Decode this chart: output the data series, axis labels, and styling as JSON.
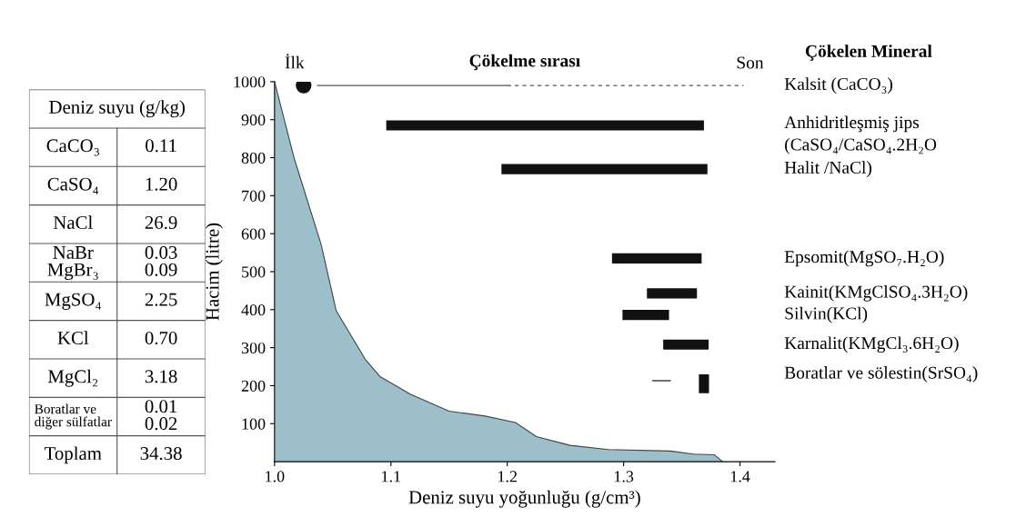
{
  "chart_data": [
    {
      "type": "other",
      "title": "Deniz suyu (g/kg)",
      "annotations": [
        "CaCO₃",
        "0.11",
        "CaSO₄",
        "1.20",
        "NaCl",
        "26.9",
        "NaBr\nMgBr₃",
        "0.03\n0.09",
        "MgSO₄",
        "2.25",
        "KCl",
        "0.70",
        "MgCl₂",
        "3.18",
        "Boratlar ve\ndiğer sülfatlar",
        "0.01\n0.02",
        "Toplam",
        "34.38"
      ]
    },
    {
      "type": "area",
      "title": "Çökelme sırası",
      "xlabel": "Deniz suyu yoğunluğu (g/cm³)",
      "ylabel": "Hacim (litre)",
      "legend_title": "Çökelen Mineral",
      "annotations": [
        "İlk",
        "Son"
      ],
      "xlim": [
        1.0,
        1.43
      ],
      "xticks": [
        {
          "value": 1.0,
          "label": "1.0"
        },
        1.1,
        1.2,
        1.3,
        1.4
      ],
      "ylim": [
        0,
        1000
      ],
      "yticks": [
        100,
        200,
        300,
        400,
        500,
        600,
        700,
        800,
        900,
        1000
      ],
      "grid": false,
      "legend": false,
      "series": [
        {
          "type": "area",
          "color": "#9dbfc9",
          "x": [
            1.0,
            1.017,
            1.04,
            1.053,
            1.078,
            1.091,
            1.117,
            1.15,
            1.181,
            1.207,
            1.225,
            1.254,
            1.287,
            1.34,
            1.36,
            1.378,
            1.385
          ],
          "values": [
            1000,
            797,
            572,
            397,
            269,
            223,
            177,
            133,
            120,
            103,
            66,
            43,
            32,
            28,
            20,
            18,
            0
          ]
        },
        {
          "type": "scatter",
          "name": "Kalsit (CaCO₃)",
          "color": "#111111",
          "marker": "circle",
          "x": [
            1.025
          ],
          "values": [
            990
          ]
        },
        {
          "type": "step",
          "color": "#555555",
          "line_style": "solid",
          "x": [
            1.037,
            1.2
          ],
          "values": [
            990,
            990
          ]
        },
        {
          "type": "step",
          "color": "#555555",
          "line_style": "dashed",
          "x": [
            1.2,
            1.403
          ],
          "values": [
            990,
            990
          ]
        },
        {
          "type": "line",
          "name": "Anhidritleşmiş jips\n(CaSO₄/CaSO₄.2H₂O",
          "color": "#111111",
          "x": [
            1.096,
            1.369
          ],
          "values": [
            885,
            885
          ]
        },
        {
          "type": "line",
          "name": "Halit /NaCl)",
          "color": "#111111",
          "x": [
            1.195,
            1.372
          ],
          "values": [
            770,
            770
          ]
        },
        {
          "type": "line",
          "name": "Epsomit(MgSO₇.H₂O)",
          "color": "#111111",
          "x": [
            1.29,
            1.367
          ],
          "values": [
            535,
            535
          ]
        },
        {
          "type": "line",
          "name": "Kainit(KMgClSO₄.3H₂O)",
          "color": "#111111",
          "x": [
            1.32,
            1.363
          ],
          "values": [
            443,
            443
          ]
        },
        {
          "type": "line",
          "name": "Silvin(KCl)",
          "color": "#111111",
          "x": [
            1.299,
            1.339
          ],
          "values": [
            386,
            386
          ]
        },
        {
          "type": "line",
          "name": "Karnalit(KMgCl₃.6H₂O)",
          "color": "#111111",
          "x": [
            1.334,
            1.373
          ],
          "values": [
            308,
            308
          ]
        },
        {
          "type": "step",
          "color": "#333333",
          "line_style": "solid",
          "x": [
            1.325,
            1.34
          ],
          "values": [
            213,
            213
          ]
        },
        {
          "type": "line",
          "name": "Boratlar ve sölestin(SrSO₄)",
          "color": "#111111",
          "x": [
            1.369,
            1.369
          ],
          "values": [
            180,
            230
          ]
        }
      ]
    }
  ]
}
